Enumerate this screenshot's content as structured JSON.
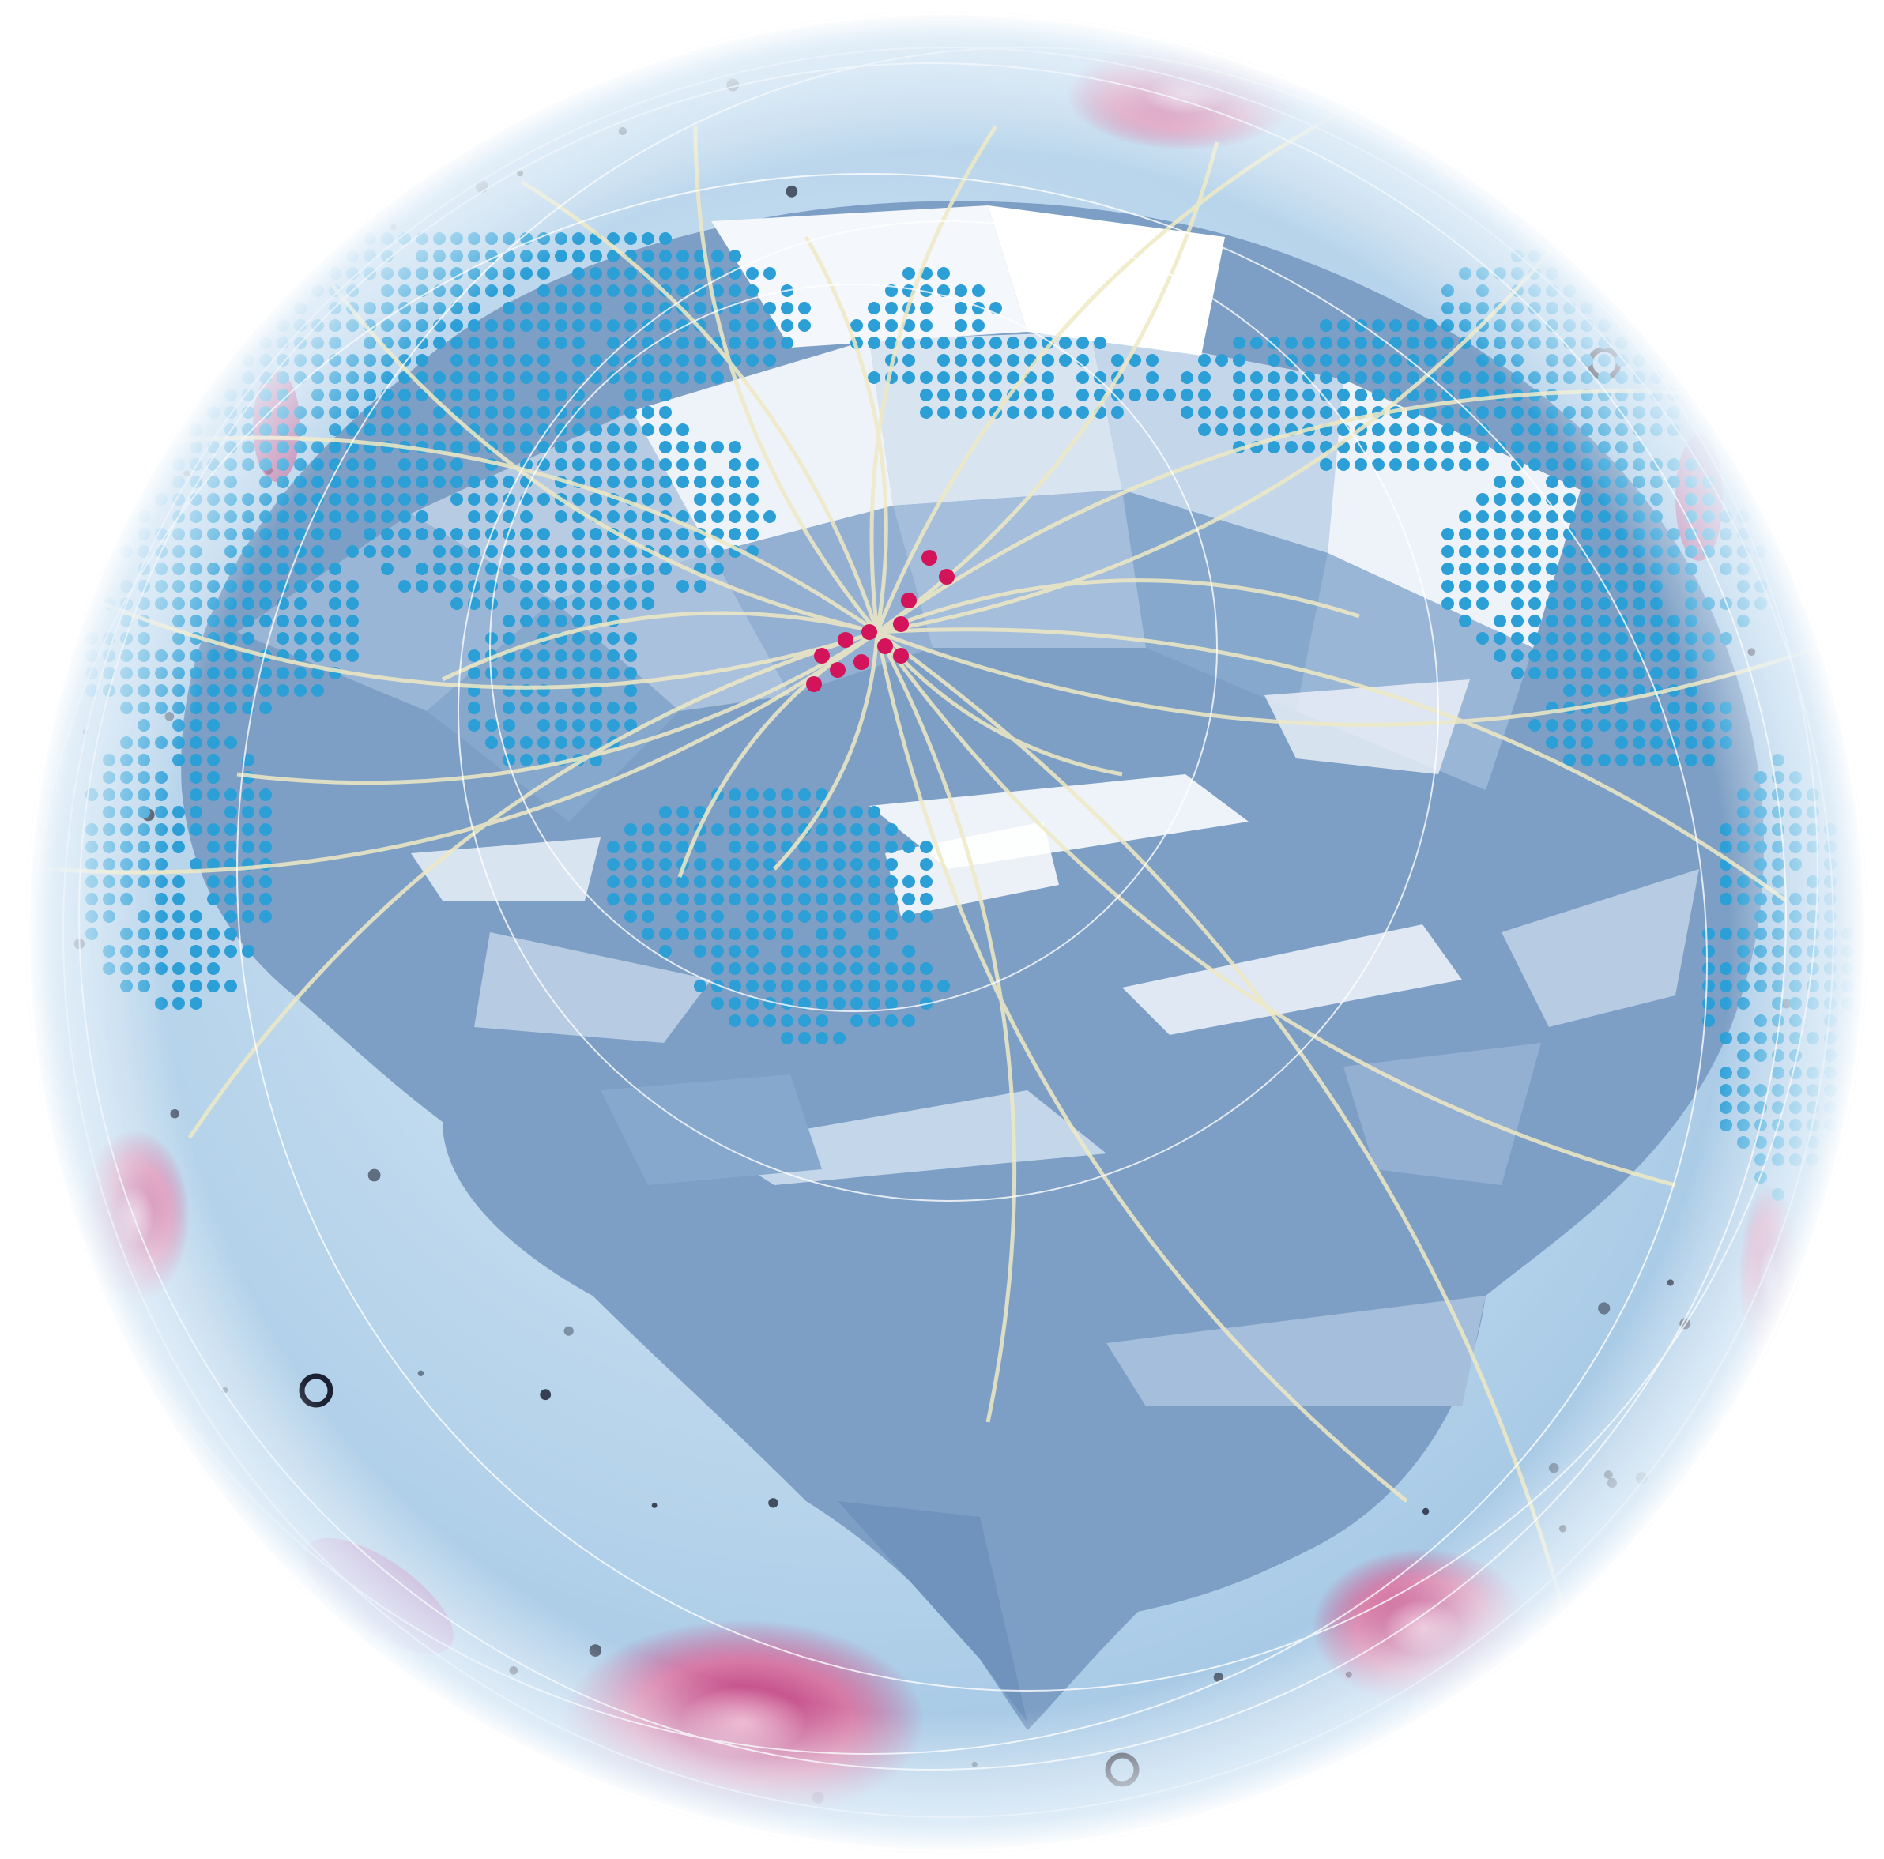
{
  "illustration": {
    "subject": "globe-brain-network",
    "colors": {
      "page_background": "#ffffff",
      "sphere_light": "#dcebf7",
      "sphere_mid": "#b4d2ea",
      "sphere_edge": "#9fc4e3",
      "brain_dark": "#6f93bd",
      "brain_mid": "#86a8cc",
      "brain_light": "#c4d6ea",
      "brain_highlight": "#eef3f9",
      "map_dot": "#2c9fd7",
      "hub_dot": "#d4145a",
      "connection_line": "#efe9c4",
      "orbit_line": "#ffffff",
      "plaque": "#c7568f",
      "cell_speck": "#1d2233"
    }
  }
}
